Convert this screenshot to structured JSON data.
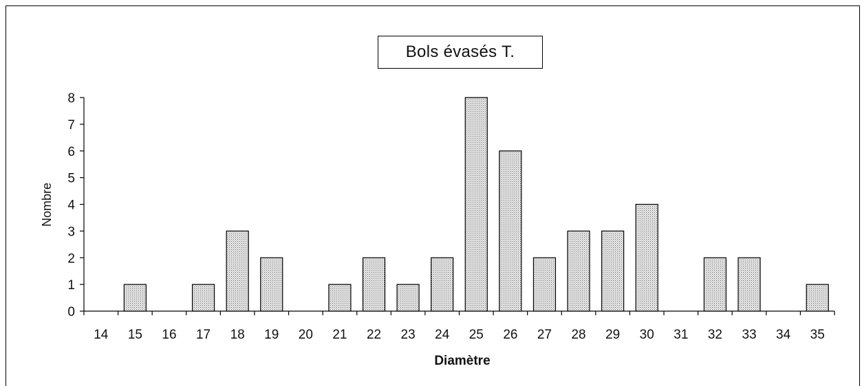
{
  "chart_data": {
    "type": "bar",
    "title": "Bols évasés T.",
    "xlabel": "Diamètre",
    "ylabel": "Nombre",
    "categories": [
      "14",
      "15",
      "16",
      "17",
      "18",
      "19",
      "20",
      "21",
      "22",
      "23",
      "24",
      "25",
      "26",
      "27",
      "28",
      "29",
      "30",
      "31",
      "32",
      "33",
      "34",
      "35"
    ],
    "values": [
      0,
      1,
      0,
      1,
      3,
      2,
      0,
      1,
      2,
      1,
      2,
      8,
      6,
      2,
      3,
      3,
      4,
      0,
      2,
      2,
      0,
      1
    ],
    "ylim": [
      0,
      8
    ],
    "yticks": [
      "0",
      "1",
      "2",
      "3",
      "4",
      "5",
      "6",
      "7",
      "8"
    ],
    "grid": false,
    "bar_fill": "#d4d4d4",
    "bar_stroke": "#000000"
  }
}
